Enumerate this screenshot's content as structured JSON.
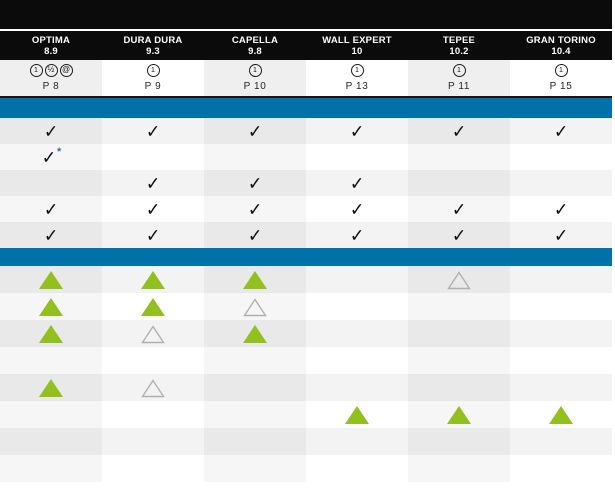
{
  "table": {
    "columns": [
      {
        "name": "OPTIMA",
        "value": "8.9",
        "icons": [
          "1",
          "½",
          "@"
        ],
        "page": "P 8"
      },
      {
        "name": "DURA DURA",
        "value": "9.3",
        "icons": [
          "1"
        ],
        "page": "P 9"
      },
      {
        "name": "CAPELLA",
        "value": "9.8",
        "icons": [
          "1"
        ],
        "page": "P 10"
      },
      {
        "name": "WALL EXPERT",
        "value": "10",
        "icons": [
          "1"
        ],
        "page": "P 13"
      },
      {
        "name": "TEPEE",
        "value": "10.2",
        "icons": [
          "1"
        ],
        "page": "P 11"
      },
      {
        "name": "GRAN TORINO",
        "value": "10.4",
        "icons": [
          "1"
        ],
        "page": "P 15"
      }
    ],
    "check_rows": [
      [
        "check",
        "check",
        "check",
        "check",
        "check",
        "check"
      ],
      [
        "check-star",
        "",
        "",
        "",
        "",
        ""
      ],
      [
        "",
        "check",
        "check",
        "check",
        "",
        ""
      ],
      [
        "check",
        "check",
        "check",
        "check",
        "check",
        "check"
      ],
      [
        "check",
        "check",
        "check",
        "check",
        "check",
        "check"
      ]
    ],
    "triangle_rows": [
      [
        "filled",
        "filled",
        "filled",
        "",
        "outline",
        ""
      ],
      [
        "filled",
        "filled",
        "outline",
        "",
        "",
        ""
      ],
      [
        "filled",
        "outline",
        "filled",
        "",
        "",
        ""
      ],
      [
        "",
        "",
        "",
        "",
        "",
        ""
      ],
      [
        "filled",
        "outline",
        "",
        "",
        "",
        ""
      ],
      [
        "",
        "",
        "",
        "filled",
        "filled",
        "filled"
      ],
      [
        "",
        "",
        "",
        "",
        "",
        ""
      ],
      [
        "",
        "",
        "",
        "",
        "",
        ""
      ]
    ],
    "symbols": {
      "check": "✓",
      "star": "*"
    },
    "colors": {
      "band_blue": "#0071a9",
      "band_black": "#0b0b0b",
      "triangle_green": "#92c01f",
      "triangle_outline": "#b0b0b0",
      "cell_dark_odd": "#e9e9e9",
      "cell_dark_even": "#f3f3f3",
      "cell_light_odd": "#f6f6f6",
      "cell_light_even": "#ffffff",
      "info_odd": "#efefef",
      "info_even": "#ffffff"
    }
  }
}
